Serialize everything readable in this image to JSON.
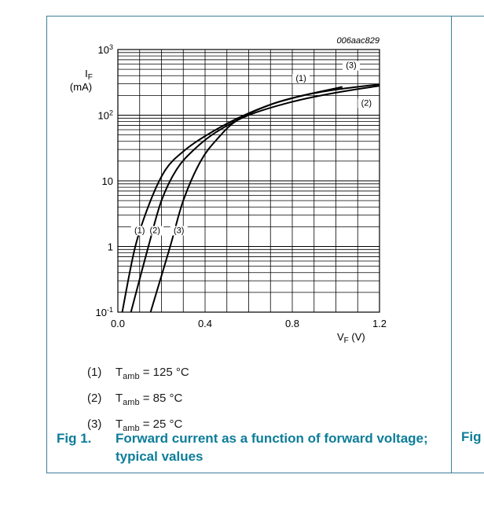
{
  "figure": {
    "id": "006aac829",
    "label": "Fig 1.",
    "caption": "Forward current as a function of forward voltage; typical values",
    "next_fig_label": "Fig"
  },
  "legend": [
    {
      "num": "(1)",
      "var": "T",
      "sub": "amb",
      "value": "= 125 °C"
    },
    {
      "num": "(2)",
      "var": "T",
      "sub": "amb",
      "value": "= 85 °C"
    },
    {
      "num": "(3)",
      "var": "T",
      "sub": "amb",
      "value": "= 25 °C"
    }
  ],
  "chart_data": {
    "type": "line",
    "title": "",
    "xlabel": "VF (V)",
    "ylabel": "IF (mA)",
    "xlim": [
      0.0,
      1.2
    ],
    "ylim": [
      0.1,
      1000
    ],
    "yscale": "log",
    "xticks": [
      "0.0",
      "0.4",
      "0.8",
      "1.2"
    ],
    "yticks": [
      "10-1",
      "1",
      "10",
      "102",
      "103"
    ],
    "grid": true,
    "series": [
      {
        "name": "(1)",
        "x": [
          0.02,
          0.08,
          0.15,
          0.22,
          0.3,
          0.4,
          0.55,
          0.7,
          0.85,
          1.03
        ],
        "y": [
          0.1,
          1.0,
          5.0,
          15,
          28,
          48,
          90,
          145,
          200,
          270
        ]
      },
      {
        "name": "(2)",
        "x": [
          0.06,
          0.14,
          0.2,
          0.27,
          0.35,
          0.45,
          0.6,
          0.8,
          1.0,
          1.2
        ],
        "y": [
          0.1,
          1.0,
          5.0,
          15,
          30,
          55,
          100,
          160,
          220,
          280
        ]
      },
      {
        "name": "(3)",
        "x": [
          0.15,
          0.24,
          0.3,
          0.38,
          0.46,
          0.55,
          0.7,
          0.85,
          1.0,
          1.2
        ],
        "y": [
          0.1,
          1.0,
          5.0,
          20,
          45,
          85,
          145,
          200,
          245,
          295
        ]
      }
    ]
  }
}
